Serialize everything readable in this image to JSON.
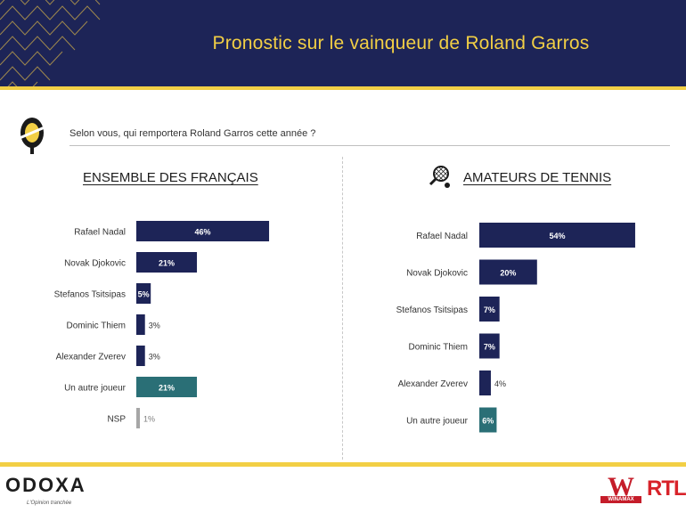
{
  "header": {
    "title": "Pronostic sur le vainqueur de Roland Garros"
  },
  "question": "Selon vous, qui remportera Roland Garros cette année ?",
  "colors": {
    "navy": "#1d2457",
    "teal": "#2a6f76",
    "gold": "#f2cf45",
    "grey_bar": "#a6a6a6"
  },
  "chart_data": [
    {
      "type": "bar",
      "orientation": "horizontal",
      "title": "ENSEMBLE DES FRANÇAIS",
      "categories": [
        "Rafael Nadal",
        "Novak Djokovic",
        "Stefanos Tsitsipas",
        "Dominic Thiem",
        "Alexander Zverev",
        "Un autre joueur",
        "NSP"
      ],
      "values": [
        46,
        21,
        5,
        3,
        3,
        21,
        1
      ],
      "labels": [
        "46%",
        "21%",
        "5%",
        "3%",
        "3%",
        "21%",
        "1%"
      ],
      "bar_colors": [
        "navy",
        "navy",
        "navy",
        "navy",
        "navy",
        "teal",
        "grey"
      ],
      "unit": "%"
    },
    {
      "type": "bar",
      "orientation": "horizontal",
      "title": "AMATEURS DE TENNIS",
      "categories": [
        "Rafael Nadal",
        "Novak Djokovic",
        "Stefanos Tsitsipas",
        "Dominic Thiem",
        "Alexander Zverev",
        "Un autre joueur"
      ],
      "values": [
        54,
        20,
        7,
        7,
        4,
        6
      ],
      "labels": [
        "54%",
        "20%",
        "7%",
        "7%",
        "4%",
        "6%"
      ],
      "bar_colors": [
        "navy",
        "navy",
        "navy",
        "navy",
        "navy",
        "teal"
      ],
      "unit": "%"
    }
  ],
  "footer": {
    "odoxa": "ODOXA",
    "odoxa_tagline": "L'Opinion tranchée",
    "winamax_w": "W",
    "winamax": "WINAMAX",
    "rtl": "RTL"
  }
}
